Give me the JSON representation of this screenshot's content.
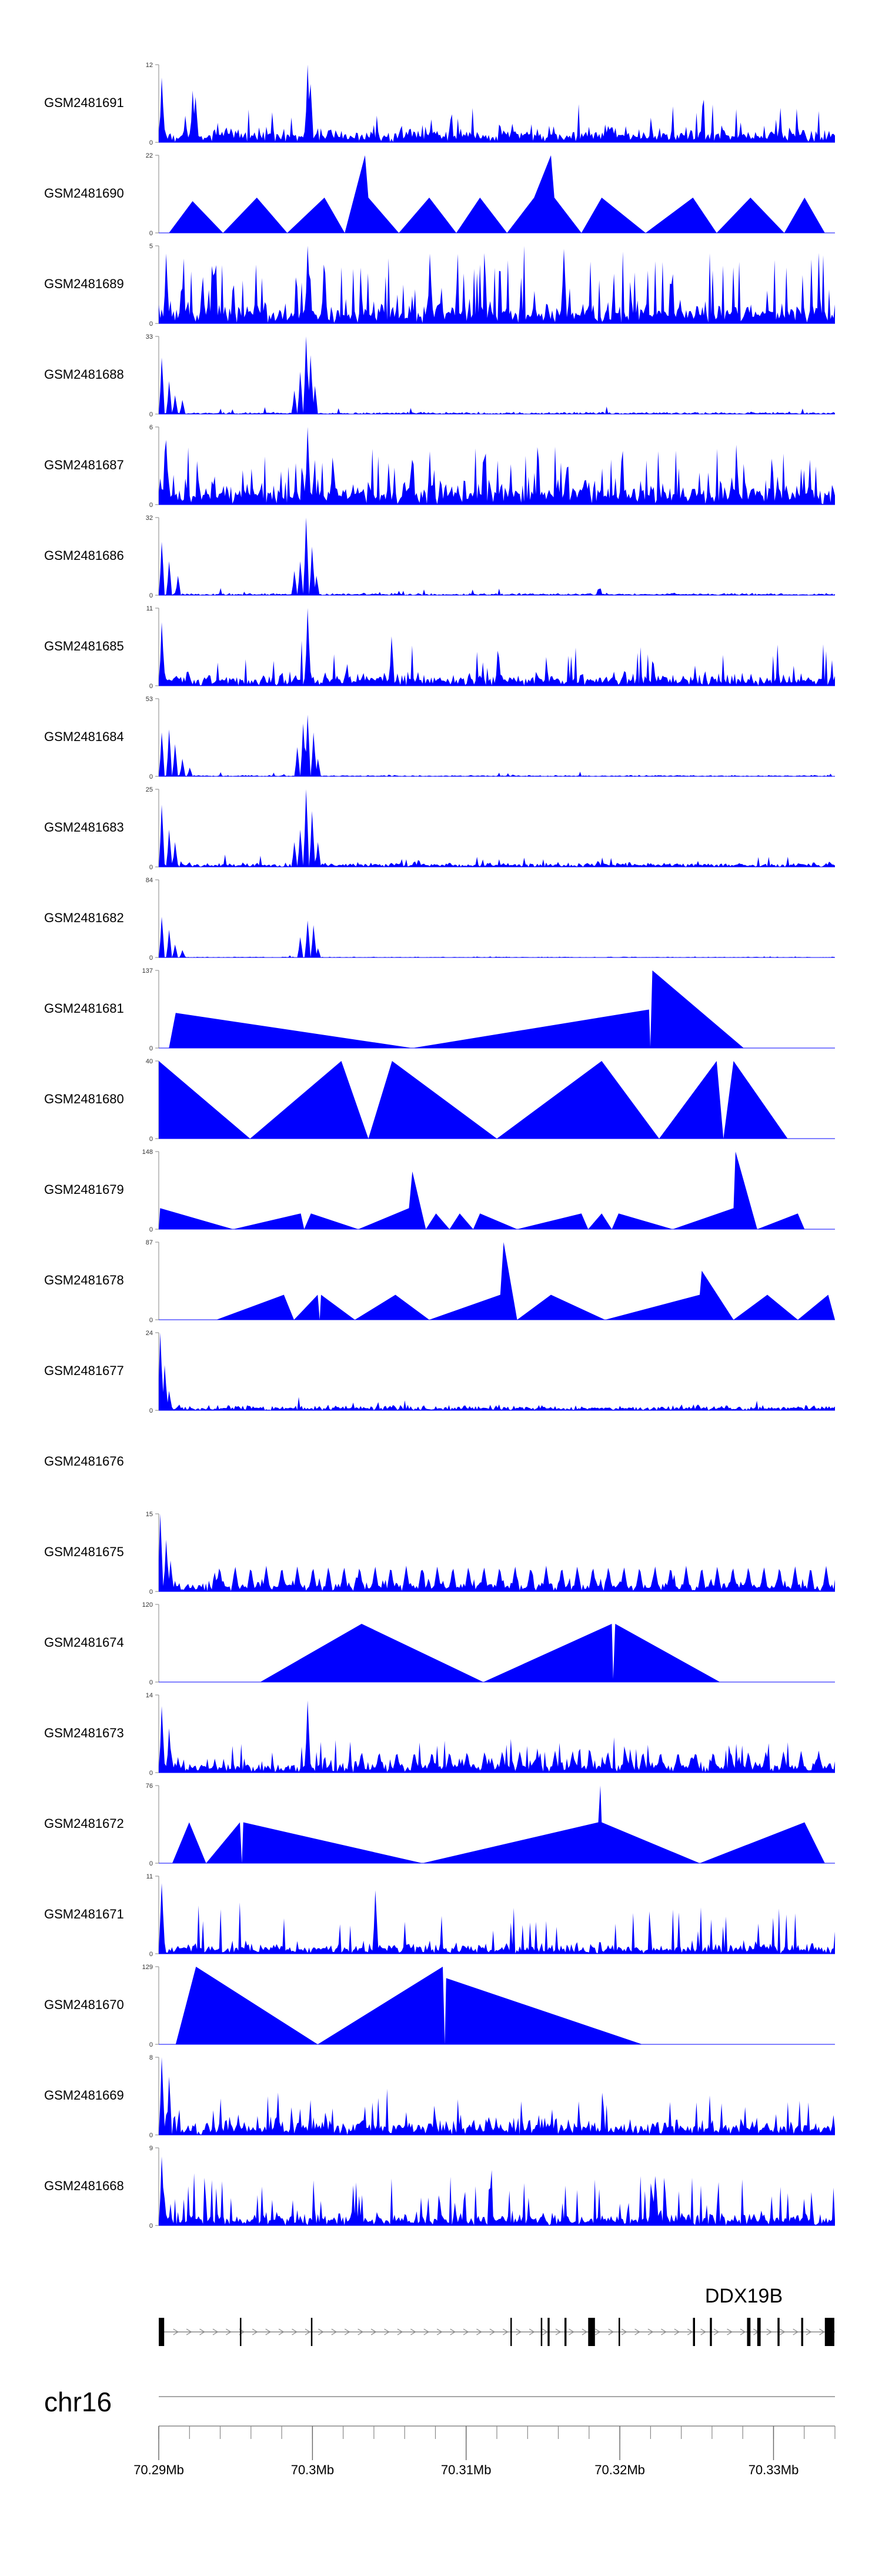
{
  "chart_data": {
    "type": "area",
    "title": "",
    "fill_color": "#0000ff",
    "axis_color": "#999999",
    "tracks": [
      {
        "name": "GSM2481691",
        "ymax": 12,
        "style": "noise",
        "base": 1.2,
        "noise": 2.0,
        "spike_rate": 0.05,
        "spike_amp": 5,
        "peaks": [
          [
            0.005,
            10
          ],
          [
            0.05,
            8
          ],
          [
            0.055,
            7
          ],
          [
            0.22,
            12
          ],
          [
            0.225,
            9
          ]
        ]
      },
      {
        "name": "GSM2481690",
        "ymax": 22,
        "style": "tri",
        "verts": [
          [
            0.015,
            0
          ],
          [
            0.05,
            9
          ],
          [
            0.095,
            0
          ],
          [
            0.145,
            10
          ],
          [
            0.19,
            0
          ],
          [
            0.245,
            10
          ],
          [
            0.275,
            0
          ],
          [
            0.305,
            22
          ],
          [
            0.31,
            10
          ],
          [
            0.355,
            0
          ],
          [
            0.4,
            10
          ],
          [
            0.44,
            0
          ],
          [
            0.475,
            10
          ],
          [
            0.515,
            0
          ],
          [
            0.555,
            10
          ],
          [
            0.58,
            22
          ],
          [
            0.585,
            10
          ],
          [
            0.625,
            0
          ],
          [
            0.655,
            10
          ],
          [
            0.72,
            0
          ],
          [
            0.79,
            10
          ],
          [
            0.825,
            0
          ],
          [
            0.875,
            10
          ],
          [
            0.925,
            0
          ],
          [
            0.955,
            10
          ],
          [
            0.985,
            0
          ]
        ]
      },
      {
        "name": "GSM2481689",
        "ymax": 5,
        "style": "noise",
        "base": 0.7,
        "noise": 1.3,
        "spike_rate": 0.14,
        "spike_amp": 3.5,
        "peaks": [
          [
            0.01,
            4.5
          ],
          [
            0.22,
            5
          ],
          [
            0.4,
            4.5
          ],
          [
            0.6,
            4.8
          ]
        ]
      },
      {
        "name": "GSM2481688",
        "ymax": 33,
        "style": "noise",
        "base": 0.4,
        "noise": 0.8,
        "spike_rate": 0.02,
        "spike_amp": 3,
        "peaks": [
          [
            0.005,
            24
          ],
          [
            0.015,
            14
          ],
          [
            0.025,
            8
          ],
          [
            0.035,
            6
          ],
          [
            0.2,
            10
          ],
          [
            0.21,
            18
          ],
          [
            0.218,
            33
          ],
          [
            0.225,
            25
          ],
          [
            0.232,
            12
          ]
        ]
      },
      {
        "name": "GSM2481687",
        "ymax": 6,
        "style": "noise",
        "base": 1.0,
        "noise": 1.6,
        "spike_rate": 0.12,
        "spike_amp": 3.5,
        "peaks": [
          [
            0.22,
            6
          ],
          [
            0.01,
            5
          ]
        ]
      },
      {
        "name": "GSM2481686",
        "ymax": 32,
        "style": "noise",
        "base": 0.4,
        "noise": 0.8,
        "spike_rate": 0.02,
        "spike_amp": 2.5,
        "peaks": [
          [
            0.005,
            22
          ],
          [
            0.015,
            14
          ],
          [
            0.028,
            8
          ],
          [
            0.2,
            10
          ],
          [
            0.21,
            14
          ],
          [
            0.218,
            32
          ],
          [
            0.226,
            20
          ],
          [
            0.234,
            8
          ]
        ]
      },
      {
        "name": "GSM2481685",
        "ymax": 11,
        "style": "noise",
        "base": 1.0,
        "noise": 1.6,
        "spike_rate": 0.08,
        "spike_amp": 5,
        "peaks": [
          [
            0.005,
            9
          ],
          [
            0.22,
            11
          ],
          [
            0.345,
            7
          ]
        ]
      },
      {
        "name": "GSM2481684",
        "ymax": 53,
        "style": "noise",
        "base": 0.4,
        "noise": 0.8,
        "spike_rate": 0.01,
        "spike_amp": 3,
        "peaks": [
          [
            0.005,
            30
          ],
          [
            0.015,
            32
          ],
          [
            0.025,
            22
          ],
          [
            0.035,
            12
          ],
          [
            0.045,
            6
          ],
          [
            0.205,
            20
          ],
          [
            0.213,
            36
          ],
          [
            0.22,
            42
          ],
          [
            0.228,
            30
          ],
          [
            0.236,
            12
          ]
        ]
      },
      {
        "name": "GSM2481683",
        "ymax": 25,
        "style": "noise",
        "base": 0.6,
        "noise": 1.4,
        "spike_rate": 0.04,
        "spike_amp": 3,
        "peaks": [
          [
            0.005,
            20
          ],
          [
            0.015,
            12
          ],
          [
            0.025,
            8
          ],
          [
            0.2,
            8
          ],
          [
            0.21,
            12
          ],
          [
            0.218,
            25
          ],
          [
            0.226,
            18
          ],
          [
            0.235,
            8
          ]
        ]
      },
      {
        "name": "GSM2481682",
        "ymax": 84,
        "style": "noise",
        "base": 0.4,
        "noise": 0.8,
        "spike_rate": 0.005,
        "spike_amp": 4,
        "peaks": [
          [
            0.005,
            44
          ],
          [
            0.015,
            30
          ],
          [
            0.025,
            14
          ],
          [
            0.035,
            8
          ],
          [
            0.21,
            22
          ],
          [
            0.22,
            40
          ],
          [
            0.228,
            35
          ],
          [
            0.236,
            10
          ]
        ]
      },
      {
        "name": "GSM2481681",
        "ymax": 137,
        "style": "tri",
        "verts": [
          [
            0.015,
            0
          ],
          [
            0.025,
            62
          ],
          [
            0.375,
            0
          ],
          [
            0.725,
            68
          ],
          [
            0.727,
            2
          ],
          [
            0.73,
            137
          ],
          [
            0.865,
            0
          ]
        ]
      },
      {
        "name": "GSM2481680",
        "ymax": 40,
        "style": "tri",
        "verts": [
          [
            0,
            40
          ],
          [
            0.135,
            0
          ],
          [
            0.27,
            40
          ],
          [
            0.31,
            0
          ],
          [
            0.345,
            40
          ],
          [
            0.5,
            0
          ],
          [
            0.655,
            40
          ],
          [
            0.74,
            0
          ],
          [
            0.825,
            40
          ],
          [
            0.835,
            0
          ],
          [
            0.85,
            40
          ],
          [
            0.93,
            0
          ]
        ]
      },
      {
        "name": "GSM2481679",
        "ymax": 148,
        "style": "tri",
        "verts": [
          [
            0,
            0
          ],
          [
            0.002,
            40
          ],
          [
            0.11,
            0
          ],
          [
            0.21,
            30
          ],
          [
            0.215,
            0
          ],
          [
            0.225,
            30
          ],
          [
            0.295,
            0
          ],
          [
            0.37,
            40
          ],
          [
            0.375,
            110
          ],
          [
            0.395,
            0
          ],
          [
            0.41,
            30
          ],
          [
            0.43,
            0
          ],
          [
            0.445,
            30
          ],
          [
            0.465,
            0
          ],
          [
            0.475,
            30
          ],
          [
            0.53,
            0
          ],
          [
            0.625,
            30
          ],
          [
            0.635,
            0
          ],
          [
            0.655,
            30
          ],
          [
            0.67,
            0
          ],
          [
            0.68,
            30
          ],
          [
            0.76,
            0
          ],
          [
            0.85,
            40
          ],
          [
            0.853,
            148
          ],
          [
            0.885,
            0
          ],
          [
            0.945,
            30
          ],
          [
            0.955,
            0
          ]
        ]
      },
      {
        "name": "GSM2481678",
        "ymax": 87,
        "style": "tri",
        "verts": [
          [
            0.085,
            0
          ],
          [
            0.185,
            28
          ],
          [
            0.2,
            0
          ],
          [
            0.235,
            28
          ],
          [
            0.238,
            0
          ],
          [
            0.24,
            28
          ],
          [
            0.29,
            0
          ],
          [
            0.35,
            28
          ],
          [
            0.4,
            0
          ],
          [
            0.505,
            28
          ],
          [
            0.51,
            87
          ],
          [
            0.53,
            0
          ],
          [
            0.58,
            28
          ],
          [
            0.66,
            0
          ],
          [
            0.8,
            28
          ],
          [
            0.803,
            55
          ],
          [
            0.85,
            0
          ],
          [
            0.9,
            28
          ],
          [
            0.945,
            0
          ],
          [
            0.99,
            28
          ],
          [
            1,
            0
          ]
        ]
      },
      {
        "name": "GSM2481677",
        "ymax": 24,
        "style": "noise",
        "base": 0.7,
        "noise": 1.5,
        "spike_rate": 0.02,
        "spike_amp": 3,
        "peaks": [
          [
            0.002,
            24
          ],
          [
            0.008,
            14
          ],
          [
            0.015,
            6
          ]
        ]
      },
      {
        "name": "GSM2481676",
        "empty": true
      },
      {
        "name": "GSM2481675",
        "ymax": 15,
        "style": "mixed",
        "base": 1.0,
        "noise": 1.8,
        "spike_rate": 0.03,
        "spike_amp": 3,
        "tri_h": 5,
        "tri_w": 0.012,
        "tri_gap": 0.023,
        "tri_start": 0.09,
        "peaks": [
          [
            0.002,
            15
          ],
          [
            0.01,
            10
          ],
          [
            0.018,
            6
          ]
        ]
      },
      {
        "name": "GSM2481674",
        "ymax": 120,
        "style": "tri",
        "verts": [
          [
            0.15,
            0
          ],
          [
            0.3,
            90
          ],
          [
            0.48,
            0
          ],
          [
            0.67,
            90
          ],
          [
            0.672,
            5
          ],
          [
            0.675,
            90
          ],
          [
            0.83,
            0
          ]
        ]
      },
      {
        "name": "GSM2481673",
        "ymax": 14,
        "style": "mixed",
        "base": 1.2,
        "noise": 2.0,
        "spike_rate": 0.06,
        "spike_amp": 5,
        "tri_h": 4,
        "tri_w": 0.012,
        "tri_gap": 0.026,
        "tri_start": 0.3,
        "peaks": [
          [
            0.005,
            12
          ],
          [
            0.015,
            8
          ],
          [
            0.22,
            13
          ]
        ]
      },
      {
        "name": "GSM2481672",
        "ymax": 76,
        "style": "tri",
        "verts": [
          [
            0.02,
            0
          ],
          [
            0.045,
            40
          ],
          [
            0.07,
            0
          ],
          [
            0.12,
            40
          ],
          [
            0.123,
            0
          ],
          [
            0.125,
            40
          ],
          [
            0.39,
            0
          ],
          [
            0.65,
            40
          ],
          [
            0.653,
            76
          ],
          [
            0.655,
            40
          ],
          [
            0.8,
            0
          ],
          [
            0.955,
            40
          ],
          [
            0.985,
            0
          ]
        ]
      },
      {
        "name": "GSM2481671",
        "ymax": 11,
        "style": "noise",
        "base": 0.8,
        "noise": 1.5,
        "spike_rate": 0.1,
        "spike_amp": 6,
        "peaks": [
          [
            0.005,
            10
          ],
          [
            0.32,
            9
          ]
        ]
      },
      {
        "name": "GSM2481670",
        "ymax": 129,
        "style": "tri",
        "verts": [
          [
            0.025,
            0
          ],
          [
            0.055,
            129
          ],
          [
            0.235,
            0
          ],
          [
            0.42,
            129
          ],
          [
            0.423,
            0
          ],
          [
            0.425,
            110
          ],
          [
            0.715,
            0
          ]
        ]
      },
      {
        "name": "GSM2481669",
        "ymax": 8,
        "style": "noise",
        "base": 0.9,
        "noise": 1.6,
        "spike_rate": 0.1,
        "spike_amp": 3,
        "peaks": [
          [
            0.005,
            8
          ],
          [
            0.015,
            6
          ]
        ]
      },
      {
        "name": "GSM2481668",
        "ymax": 9,
        "style": "noise",
        "base": 0.8,
        "noise": 1.4,
        "spike_rate": 0.14,
        "spike_amp": 5,
        "peaks": [
          [
            0.005,
            8
          ]
        ]
      }
    ],
    "gene": {
      "label": "DDX19B",
      "line_range": [
        0,
        1
      ],
      "arrow_direction": "right",
      "exons": [
        [
          0.0,
          0.008
        ],
        [
          0.12,
          0.122
        ],
        [
          0.225,
          0.227
        ],
        [
          0.52,
          0.522
        ],
        [
          0.565,
          0.567
        ],
        [
          0.575,
          0.578
        ],
        [
          0.6,
          0.603
        ],
        [
          0.635,
          0.645
        ],
        [
          0.68,
          0.682
        ],
        [
          0.79,
          0.793
        ],
        [
          0.815,
          0.818
        ],
        [
          0.87,
          0.875
        ],
        [
          0.885,
          0.89
        ],
        [
          0.915,
          0.918
        ],
        [
          0.95,
          0.953
        ],
        [
          0.985,
          0.999
        ]
      ]
    },
    "chromosome": "chr16",
    "xaxis": {
      "range_mb": [
        70.29,
        70.334
      ],
      "labels": [
        "70.29Mb",
        "70.3Mb",
        "70.31Mb",
        "70.32Mb",
        "70.33Mb"
      ],
      "major_ticks": [
        70.29,
        70.3,
        70.31,
        70.32,
        70.33
      ],
      "minor_step": 0.002
    }
  }
}
